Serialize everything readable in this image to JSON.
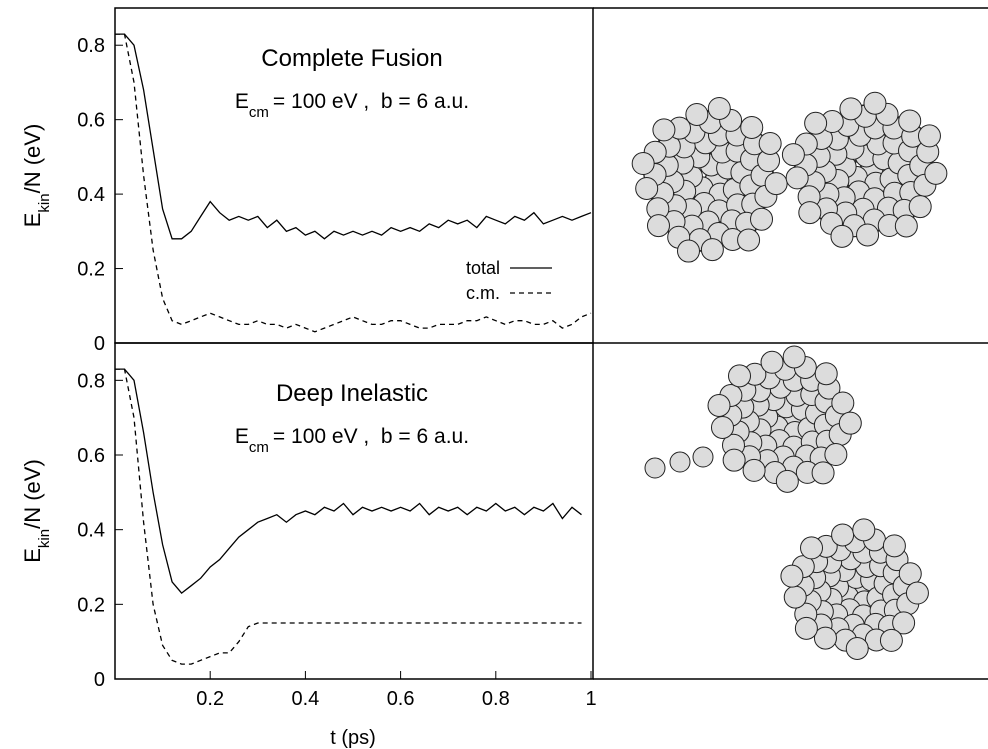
{
  "chart_data": [
    {
      "type": "line",
      "title": "Complete Fusion",
      "energy_label": {
        "symbol": "E",
        "subscript": "cm",
        "text": "= 100 eV ,  b = 6 a.u."
      },
      "ylabel": {
        "symbol": "E",
        "subscript": "kin",
        "text": "/N (eV)"
      },
      "x": [
        0,
        0.02,
        0.04,
        0.06,
        0.08,
        0.1,
        0.12,
        0.14,
        0.16,
        0.18,
        0.2,
        0.22,
        0.24,
        0.26,
        0.28,
        0.3,
        0.32,
        0.34,
        0.36,
        0.38,
        0.4,
        0.42,
        0.44,
        0.46,
        0.48,
        0.5,
        0.52,
        0.54,
        0.56,
        0.58,
        0.6,
        0.62,
        0.64,
        0.66,
        0.68,
        0.7,
        0.72,
        0.74,
        0.76,
        0.78,
        0.8,
        0.82,
        0.84,
        0.86,
        0.88,
        0.9,
        0.92,
        0.94,
        0.96,
        0.98,
        1
      ],
      "series": [
        {
          "name": "total",
          "color": "#000000",
          "dash": false,
          "values": [
            0.83,
            0.83,
            0.8,
            0.68,
            0.52,
            0.36,
            0.28,
            0.28,
            0.3,
            0.34,
            0.38,
            0.35,
            0.33,
            0.34,
            0.33,
            0.34,
            0.31,
            0.33,
            0.3,
            0.31,
            0.29,
            0.3,
            0.28,
            0.3,
            0.29,
            0.3,
            0.29,
            0.3,
            0.29,
            0.31,
            0.3,
            0.31,
            0.3,
            0.32,
            0.31,
            0.33,
            0.32,
            0.33,
            0.31,
            0.34,
            0.33,
            0.32,
            0.34,
            0.33,
            0.35,
            0.32,
            0.33,
            0.34,
            0.33,
            0.34,
            0.35
          ]
        },
        {
          "name": "c.m.",
          "color": "#000000",
          "dash": true,
          "values": [
            0.83,
            0.83,
            0.7,
            0.45,
            0.25,
            0.12,
            0.06,
            0.05,
            0.06,
            0.07,
            0.08,
            0.07,
            0.06,
            0.05,
            0.05,
            0.06,
            0.05,
            0.05,
            0.04,
            0.05,
            0.04,
            0.03,
            0.04,
            0.05,
            0.06,
            0.07,
            0.06,
            0.05,
            0.05,
            0.06,
            0.06,
            0.05,
            0.04,
            0.04,
            0.05,
            0.05,
            0.05,
            0.06,
            0.06,
            0.07,
            0.06,
            0.05,
            0.06,
            0.06,
            0.05,
            0.05,
            0.06,
            0.04,
            0.05,
            0.07,
            0.08
          ]
        }
      ],
      "xlim": [
        0,
        1
      ],
      "ylim": [
        0,
        0.9
      ],
      "yticks": [
        0,
        0.2,
        0.4,
        0.6,
        0.8
      ],
      "legend": "lower right"
    },
    {
      "type": "line",
      "title": "Deep Inelastic",
      "energy_label": {
        "symbol": "E",
        "subscript": "cm",
        "text": "= 100 eV ,  b = 6 a.u."
      },
      "ylabel": {
        "symbol": "E",
        "subscript": "kin",
        "text": "/N (eV)"
      },
      "xlabel": "t (ps)",
      "x": [
        0,
        0.02,
        0.04,
        0.06,
        0.08,
        0.1,
        0.12,
        0.14,
        0.16,
        0.18,
        0.2,
        0.22,
        0.24,
        0.26,
        0.28,
        0.3,
        0.32,
        0.34,
        0.36,
        0.38,
        0.4,
        0.42,
        0.44,
        0.46,
        0.48,
        0.5,
        0.52,
        0.54,
        0.56,
        0.58,
        0.6,
        0.62,
        0.64,
        0.66,
        0.68,
        0.7,
        0.72,
        0.74,
        0.76,
        0.78,
        0.8,
        0.82,
        0.84,
        0.86,
        0.88,
        0.9,
        0.92,
        0.94,
        0.96,
        0.98,
        1
      ],
      "series": [
        {
          "name": "total",
          "color": "#000000",
          "dash": false,
          "values": [
            0.83,
            0.83,
            0.8,
            0.66,
            0.5,
            0.36,
            0.26,
            0.23,
            0.25,
            0.27,
            0.3,
            0.32,
            0.35,
            0.38,
            0.4,
            0.42,
            0.43,
            0.44,
            0.42,
            0.44,
            0.45,
            0.44,
            0.46,
            0.45,
            0.47,
            0.44,
            0.46,
            0.45,
            0.46,
            0.45,
            0.46,
            0.45,
            0.47,
            0.44,
            0.46,
            0.45,
            0.46,
            0.44,
            0.46,
            0.45,
            0.47,
            0.45,
            0.46,
            0.44,
            0.46,
            0.45,
            0.47,
            0.43,
            0.46,
            0.44,
            null
          ]
        },
        {
          "name": "c.m.",
          "color": "#000000",
          "dash": true,
          "values": [
            0.83,
            0.83,
            0.7,
            0.42,
            0.2,
            0.09,
            0.05,
            0.04,
            0.04,
            0.05,
            0.06,
            0.07,
            0.07,
            0.1,
            0.14,
            0.15,
            0.15,
            0.15,
            0.15,
            0.15,
            0.15,
            0.15,
            0.15,
            0.15,
            0.15,
            0.15,
            0.15,
            0.15,
            0.15,
            0.15,
            0.15,
            0.15,
            0.15,
            0.15,
            0.15,
            0.15,
            0.15,
            0.15,
            0.15,
            0.15,
            0.15,
            0.15,
            0.15,
            0.15,
            0.15,
            0.15,
            0.15,
            0.15,
            0.15,
            0.15,
            null
          ]
        }
      ],
      "xlim": [
        0,
        1
      ],
      "ylim": [
        0,
        0.9
      ],
      "yticks": [
        0,
        0.2,
        0.4,
        0.6,
        0.8
      ],
      "xticks": [
        0.2,
        0.4,
        0.6,
        0.8,
        1
      ]
    }
  ]
}
